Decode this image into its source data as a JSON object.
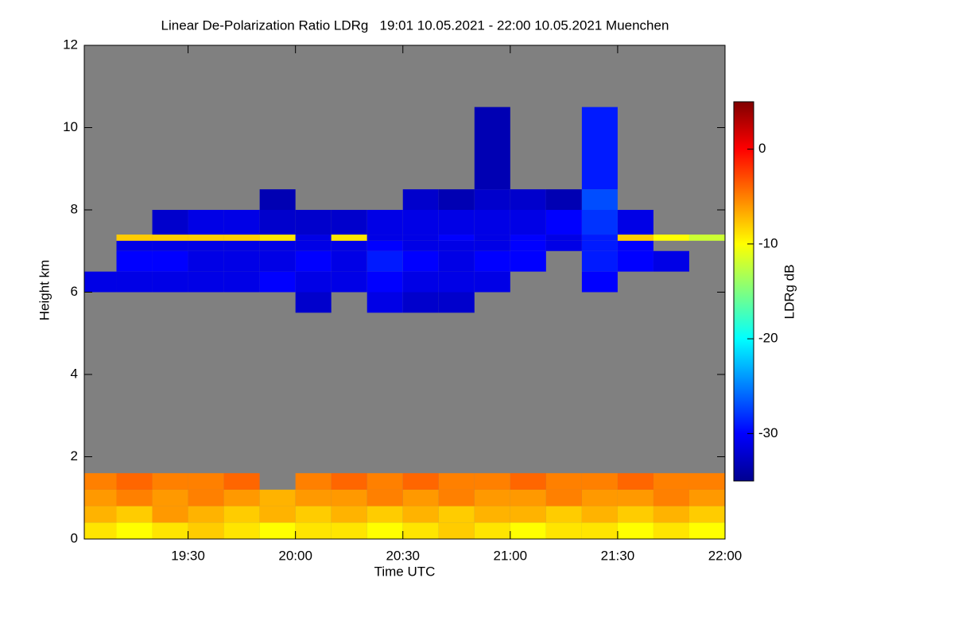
{
  "chart_data": {
    "type": "heatmap",
    "title": "Linear De-Polarization Ratio LDRg   19:01 10.05.2021 - 22:00 10.05.2021 Muenchen",
    "x_label": "Time UTC",
    "y_label": "Height km",
    "colorbar_label": "LDRg dB",
    "colormap": "jet",
    "background": "#808080",
    "xlim": [
      1,
      180
    ],
    "xticks": [
      {
        "value": 30,
        "label": "19:30"
      },
      {
        "value": 60,
        "label": "20:00"
      },
      {
        "value": 90,
        "label": "20:30"
      },
      {
        "value": 120,
        "label": "21:00"
      },
      {
        "value": 150,
        "label": "21:30"
      },
      {
        "value": 180,
        "label": "22:00"
      }
    ],
    "ylim": [
      0,
      12
    ],
    "yticks": [
      0,
      2,
      4,
      6,
      8,
      10,
      12
    ],
    "zlim": [
      -35,
      5
    ],
    "zticks": [
      0,
      -10,
      -20,
      -30
    ],
    "xbins": [
      1,
      10,
      20,
      30,
      40,
      50,
      60,
      70,
      80,
      90,
      100,
      110,
      120,
      130,
      140,
      150,
      160,
      170,
      180
    ],
    "ybins": [
      0,
      0.4,
      0.8,
      1.2,
      1.6,
      2,
      5.5,
      6,
      6.5,
      7,
      7.25,
      7.4,
      8,
      8.5,
      10.5
    ],
    "z": [
      [
        -9,
        -10,
        -9,
        -8,
        -9,
        -10,
        -9,
        -9,
        -10,
        -9,
        -8,
        -9,
        -10,
        -9,
        -9,
        -10,
        -9,
        -10
      ],
      [
        -7,
        -8,
        -6,
        -7,
        -8,
        -7,
        -8,
        -7,
        -8,
        -7,
        -8,
        -7,
        -7,
        -8,
        -7,
        -8,
        -7,
        -8
      ],
      [
        -6,
        -5,
        -6,
        -5,
        -6,
        -7,
        -6,
        -6,
        -5,
        -6,
        -5,
        -6,
        -6,
        -5,
        -6,
        -6,
        -5,
        -6
      ],
      [
        -5,
        -4,
        -5,
        -5,
        -4,
        null,
        -5,
        -4,
        -5,
        -4,
        -5,
        -5,
        -4,
        -5,
        -5,
        -4,
        -5,
        -5
      ],
      [
        null,
        null,
        null,
        null,
        null,
        null,
        null,
        null,
        null,
        null,
        null,
        null,
        null,
        null,
        null,
        null,
        null,
        null
      ],
      [
        null,
        null,
        null,
        null,
        null,
        null,
        null,
        null,
        null,
        null,
        null,
        null,
        null,
        null,
        null,
        null,
        null,
        null
      ],
      [
        null,
        null,
        null,
        null,
        null,
        null,
        -32,
        null,
        -31,
        -32,
        -32,
        null,
        null,
        null,
        null,
        null,
        null,
        null
      ],
      [
        -31,
        -31,
        -31,
        -31,
        -31,
        -30,
        -31,
        -31,
        -30,
        -31,
        -31,
        -31,
        null,
        null,
        -30,
        null,
        null,
        null
      ],
      [
        null,
        -30,
        -30,
        -31,
        -31,
        -31,
        -30,
        -31,
        -29,
        -30,
        -31,
        -30,
        -30,
        null,
        -29,
        -30,
        -31,
        null
      ],
      [
        null,
        -31,
        -31,
        -31,
        -31,
        -31,
        -31,
        -31,
        -30,
        -31,
        -31,
        -31,
        -30,
        -31,
        -29,
        -30,
        null,
        null
      ],
      [
        null,
        -8,
        -8,
        -8,
        -8,
        -9,
        -31,
        -9,
        -31,
        -31,
        -30,
        -31,
        -30,
        -31,
        -29,
        -8,
        -10,
        -12
      ],
      [
        null,
        null,
        -32,
        -31,
        -31,
        -32,
        -32,
        -32,
        -31,
        -31,
        -31,
        -31,
        -31,
        -30,
        -28,
        -31,
        null,
        null
      ],
      [
        null,
        null,
        null,
        null,
        null,
        -33,
        null,
        null,
        null,
        -32,
        -33,
        -32,
        -32,
        -33,
        -27,
        null,
        null,
        null
      ],
      [
        null,
        null,
        null,
        null,
        null,
        null,
        null,
        null,
        null,
        null,
        null,
        -33,
        null,
        null,
        -29,
        null,
        null,
        null
      ]
    ]
  }
}
